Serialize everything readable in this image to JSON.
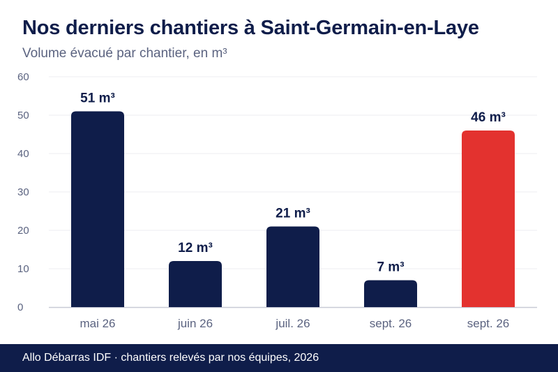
{
  "chart_data": {
    "type": "bar",
    "title": "Nos derniers chantiers à Saint-Germain-en-Laye",
    "subtitle": "Volume évacué par chantier, en m³",
    "categories": [
      "mai 26",
      "juin 26",
      "juil. 26",
      "sept. 26",
      "sept. 26"
    ],
    "values": [
      51,
      12,
      21,
      7,
      46
    ],
    "value_labels": [
      "51 m³",
      "12 m³",
      "21 m³",
      "7 m³",
      "46 m³"
    ],
    "bar_colors": [
      "#0f1d4a",
      "#0f1d4a",
      "#0f1d4a",
      "#0f1d4a",
      "#e3322f"
    ],
    "ylim": [
      0,
      60
    ],
    "yticks": [
      0,
      10,
      20,
      30,
      40,
      50,
      60
    ],
    "grid": true,
    "legend": "none",
    "xlabel": "",
    "ylabel": ""
  },
  "colors": {
    "primary": "#0f1d4a",
    "accent": "#e3322f",
    "grid": "#ececf1",
    "tick_text": "#5b6380"
  },
  "footer": {
    "source": "Allo Débarras IDF · chantiers relevés par nos équipes, 2026"
  }
}
